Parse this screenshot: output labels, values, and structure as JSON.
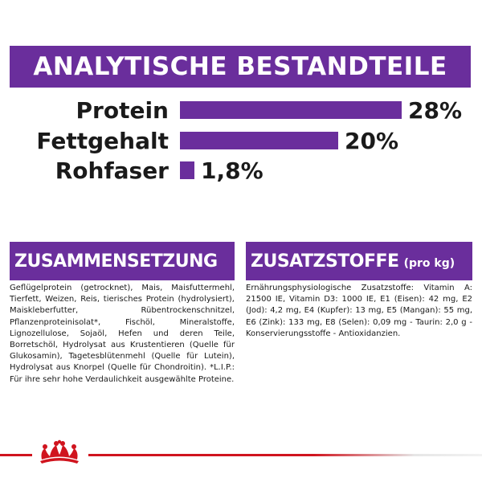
{
  "banner": {
    "title": "ANALYTISCHE BESTANDTEILE"
  },
  "chart_data": {
    "type": "bar",
    "categories": [
      "Protein",
      "Fettgehalt",
      "Rohfaser"
    ],
    "values": [
      28,
      20,
      1.8
    ],
    "value_labels": [
      "28%",
      "20%",
      "1,8%"
    ],
    "unit": "%",
    "xlim": [
      0,
      28
    ],
    "orientation": "horizontal",
    "bar_color": "#6a2e9c"
  },
  "composition": {
    "title": "ZUSAMMENSETZUNG",
    "text": "Geflügelprotein (getrocknet), Mais, Maisfuttermehl, Tierfett, Weizen, Reis, tierisches Protein (hydrolysiert), Maiskleberfutter, Rübentrockenschnitzel, Pflanzenproteinisolat*, Fischöl, Mineralstoffe, Lignozellulose, Sojaöl, Hefen und deren Teile, Borretschöl, Hydrolysat aus Krustentieren (Quelle für Glukosamin), Tagetesblütenmehl (Quelle für Lutein), Hydrolysat aus Knorpel (Quelle für Chondroitin). *L.I.P.: Für ihre sehr hohe Verdaulichkeit ausgewählte Proteine."
  },
  "additives": {
    "title": "ZUSATZSTOFFE",
    "subtitle": "(pro kg)",
    "text": "Ernährungsphysiologische Zusatzstoffe: Vitamin A: 21500 IE, Vitamin D3: 1000 IE, E1 (Eisen): 42 mg, E2 (Jod): 4,2 mg, E4 (Kupfer): 13 mg, E5 (Mangan): 55 mg, E6 (Zink): 133 mg, E8 (Selen): 0,09 mg - Taurin: 2,0 g - Konservierungsstoffe - Antioxidanzien."
  },
  "colors": {
    "accent": "#6a2e9c",
    "brand_red": "#d0141e"
  },
  "footer": {
    "logo": "royal-canin-crown-icon"
  }
}
